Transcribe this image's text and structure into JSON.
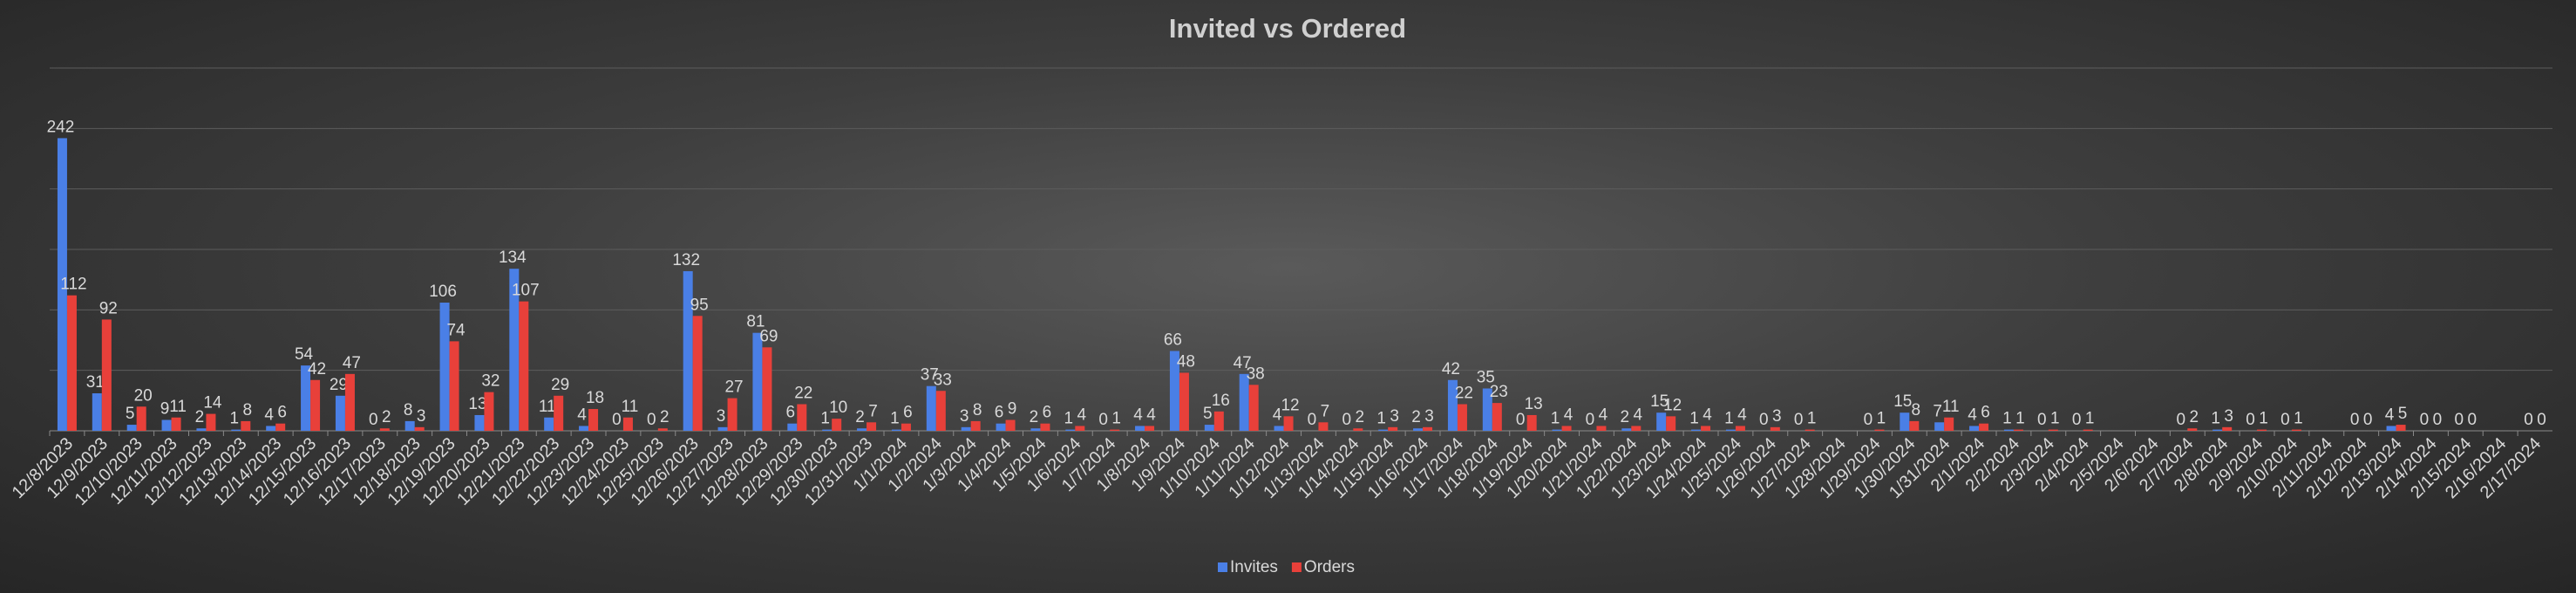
{
  "chart_data": {
    "type": "bar",
    "title": "Invited vs Ordered",
    "categories": [
      "12/8/2023",
      "12/9/2023",
      "12/10/2023",
      "12/11/2023",
      "12/12/2023",
      "12/13/2023",
      "12/14/2023",
      "12/15/2023",
      "12/16/2023",
      "12/17/2023",
      "12/18/2023",
      "12/19/2023",
      "12/20/2023",
      "12/21/2023",
      "12/22/2023",
      "12/23/2023",
      "12/24/2023",
      "12/25/2023",
      "12/26/2023",
      "12/27/2023",
      "12/28/2023",
      "12/29/2023",
      "12/30/2023",
      "12/31/2023",
      "1/1/2024",
      "1/2/2024",
      "1/3/2024",
      "1/4/2024",
      "1/5/2024",
      "1/6/2024",
      "1/7/2024",
      "1/8/2024",
      "1/9/2024",
      "1/10/2024",
      "1/11/2024",
      "1/12/2024",
      "1/13/2024",
      "1/14/2024",
      "1/15/2024",
      "1/16/2024",
      "1/17/2024",
      "1/18/2024",
      "1/19/2024",
      "1/20/2024",
      "1/21/2024",
      "1/22/2024",
      "1/23/2024",
      "1/24/2024",
      "1/25/2024",
      "1/26/2024",
      "1/27/2024",
      "1/28/2024",
      "1/29/2024",
      "1/30/2024",
      "1/31/2024",
      "2/1/2024",
      "2/2/2024",
      "2/3/2024",
      "2/4/2024",
      "2/5/2024",
      "2/6/2024",
      "2/7/2024",
      "2/8/2024",
      "2/9/2024",
      "2/10/2024",
      "2/11/2024",
      "2/12/2024",
      "2/13/2024",
      "2/14/2024",
      "2/15/2024",
      "2/16/2024",
      "2/17/2024"
    ],
    "series": [
      {
        "name": "Invites",
        "color": "#4a7fe6",
        "values": [
          242,
          31,
          5,
          9,
          2,
          1,
          4,
          54,
          29,
          0,
          8,
          106,
          13,
          134,
          11,
          4,
          0,
          0,
          132,
          3,
          81,
          6,
          1,
          2,
          1,
          37,
          3,
          6,
          2,
          1,
          0,
          4,
          66,
          5,
          47,
          4,
          0,
          0,
          1,
          2,
          42,
          35,
          0,
          1,
          0,
          2,
          15,
          1,
          1,
          0,
          0,
          null,
          0,
          15,
          7,
          4,
          1,
          0,
          0,
          null,
          null,
          0,
          1,
          0,
          0,
          null,
          0,
          4,
          0,
          0,
          null,
          0
        ]
      },
      {
        "name": "Orders",
        "color": "#e8403a",
        "values": [
          112,
          92,
          20,
          11,
          14,
          8,
          6,
          42,
          47,
          2,
          3,
          74,
          32,
          107,
          29,
          18,
          11,
          2,
          95,
          27,
          69,
          22,
          10,
          7,
          6,
          33,
          8,
          9,
          6,
          4,
          1,
          4,
          48,
          16,
          38,
          12,
          7,
          2,
          3,
          3,
          22,
          23,
          13,
          4,
          4,
          4,
          12,
          4,
          4,
          3,
          1,
          null,
          1,
          8,
          11,
          6,
          1,
          1,
          1,
          null,
          null,
          2,
          3,
          1,
          1,
          null,
          0,
          5,
          0,
          0,
          null,
          0
        ]
      }
    ],
    "ylim": [
      0,
      300
    ],
    "yticks": [
      0,
      50,
      100,
      150,
      200,
      250,
      300
    ],
    "grid": true,
    "legend": "bottom"
  }
}
